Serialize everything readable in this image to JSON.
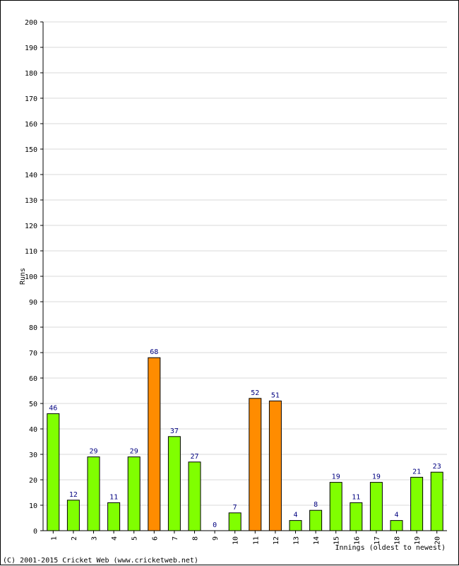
{
  "chart_data": {
    "type": "bar",
    "ylabel": "Runs",
    "xlabel": "Innings (oldest to newest)",
    "ylim": [
      0,
      200
    ],
    "yticks": [
      0,
      10,
      20,
      30,
      40,
      50,
      60,
      70,
      80,
      90,
      100,
      110,
      120,
      130,
      140,
      150,
      160,
      170,
      180,
      190,
      200
    ],
    "categories": [
      "1",
      "2",
      "3",
      "4",
      "5",
      "6",
      "7",
      "8",
      "9",
      "10",
      "11",
      "12",
      "13",
      "14",
      "15",
      "16",
      "17",
      "18",
      "19",
      "20"
    ],
    "values": [
      46,
      12,
      29,
      11,
      29,
      68,
      37,
      27,
      0,
      7,
      52,
      51,
      4,
      8,
      19,
      11,
      19,
      4,
      21,
      23
    ],
    "highlight": [
      false,
      false,
      false,
      false,
      false,
      true,
      false,
      false,
      false,
      false,
      true,
      true,
      false,
      false,
      false,
      false,
      false,
      false,
      false,
      false
    ],
    "grid": true,
    "colors": {
      "normal": "#80ff00",
      "highlight": "#ff8c00",
      "label": "#000080",
      "grid": "#d8d8d8"
    }
  },
  "footer": {
    "copyright": "(C) 2001-2015 Cricket Web (www.cricketweb.net)"
  }
}
